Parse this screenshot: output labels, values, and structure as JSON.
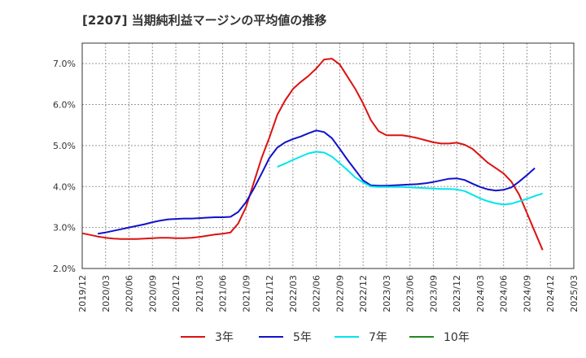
{
  "title": "[2207]  当期純利益マージンの平均値の推移",
  "chart_data": {
    "type": "line",
    "title": "[2207]  当期純利益マージンの平均値の推移",
    "xlabel": "",
    "ylabel": "",
    "ylim": [
      2.0,
      7.5
    ],
    "xlim": [
      "2019/12",
      "2025/03"
    ],
    "grid": true,
    "legend_position": "bottom",
    "y_ticks": [
      "2.0%",
      "3.0%",
      "4.0%",
      "5.0%",
      "6.0%",
      "7.0%"
    ],
    "x_ticks": [
      "2019/12",
      "2020/03",
      "2020/06",
      "2020/09",
      "2020/12",
      "2021/03",
      "2021/06",
      "2021/09",
      "2021/12",
      "2022/03",
      "2022/06",
      "2022/09",
      "2022/12",
      "2023/03",
      "2023/06",
      "2023/09",
      "2023/12",
      "2024/03",
      "2024/06",
      "2024/09",
      "2024/12",
      "2025/03"
    ],
    "series": [
      {
        "name": "3年",
        "color": "#dd1111",
        "points": [
          [
            "2019/12",
            2.86
          ],
          [
            "2020/01",
            2.82
          ],
          [
            "2020/02",
            2.78
          ],
          [
            "2020/03",
            2.75
          ],
          [
            "2020/04",
            2.73
          ],
          [
            "2020/05",
            2.72
          ],
          [
            "2020/06",
            2.72
          ],
          [
            "2020/07",
            2.72
          ],
          [
            "2020/08",
            2.73
          ],
          [
            "2020/09",
            2.74
          ],
          [
            "2020/10",
            2.75
          ],
          [
            "2020/11",
            2.75
          ],
          [
            "2020/12",
            2.74
          ],
          [
            "2021/01",
            2.74
          ],
          [
            "2021/02",
            2.75
          ],
          [
            "2021/03",
            2.77
          ],
          [
            "2021/04",
            2.8
          ],
          [
            "2021/05",
            2.83
          ],
          [
            "2021/06",
            2.85
          ],
          [
            "2021/07",
            2.88
          ],
          [
            "2021/08",
            3.1
          ],
          [
            "2021/09",
            3.5
          ],
          [
            "2021/10",
            4.1
          ],
          [
            "2021/11",
            4.7
          ],
          [
            "2021/12",
            5.2
          ],
          [
            "2022/01",
            5.75
          ],
          [
            "2022/02",
            6.1
          ],
          [
            "2022/03",
            6.38
          ],
          [
            "2022/04",
            6.55
          ],
          [
            "2022/05",
            6.7
          ],
          [
            "2022/06",
            6.88
          ],
          [
            "2022/07",
            7.1
          ],
          [
            "2022/08",
            7.12
          ],
          [
            "2022/09",
            6.98
          ],
          [
            "2022/10",
            6.68
          ],
          [
            "2022/11",
            6.38
          ],
          [
            "2022/12",
            6.03
          ],
          [
            "2023/01",
            5.62
          ],
          [
            "2023/02",
            5.35
          ],
          [
            "2023/03",
            5.25
          ],
          [
            "2023/04",
            5.25
          ],
          [
            "2023/05",
            5.25
          ],
          [
            "2023/06",
            5.22
          ],
          [
            "2023/07",
            5.18
          ],
          [
            "2023/08",
            5.13
          ],
          [
            "2023/09",
            5.08
          ],
          [
            "2023/10",
            5.05
          ],
          [
            "2023/11",
            5.05
          ],
          [
            "2023/12",
            5.07
          ],
          [
            "2024/01",
            5.02
          ],
          [
            "2024/02",
            4.92
          ],
          [
            "2024/03",
            4.75
          ],
          [
            "2024/04",
            4.58
          ],
          [
            "2024/05",
            4.45
          ],
          [
            "2024/06",
            4.32
          ],
          [
            "2024/07",
            4.12
          ],
          [
            "2024/08",
            3.8
          ],
          [
            "2024/09",
            3.35
          ],
          [
            "2024/10",
            2.9
          ],
          [
            "2024/11",
            2.45
          ]
        ]
      },
      {
        "name": "5年",
        "color": "#1111cc",
        "points": [
          [
            "2020/02",
            2.85
          ],
          [
            "2020/03",
            2.88
          ],
          [
            "2020/04",
            2.92
          ],
          [
            "2020/05",
            2.96
          ],
          [
            "2020/06",
            3.0
          ],
          [
            "2020/07",
            3.04
          ],
          [
            "2020/08",
            3.08
          ],
          [
            "2020/09",
            3.13
          ],
          [
            "2020/10",
            3.17
          ],
          [
            "2020/11",
            3.2
          ],
          [
            "2020/12",
            3.21
          ],
          [
            "2021/01",
            3.22
          ],
          [
            "2021/02",
            3.22
          ],
          [
            "2021/03",
            3.23
          ],
          [
            "2021/04",
            3.24
          ],
          [
            "2021/05",
            3.25
          ],
          [
            "2021/06",
            3.25
          ],
          [
            "2021/07",
            3.26
          ],
          [
            "2021/08",
            3.38
          ],
          [
            "2021/09",
            3.62
          ],
          [
            "2021/10",
            3.95
          ],
          [
            "2021/11",
            4.32
          ],
          [
            "2021/12",
            4.7
          ],
          [
            "2022/01",
            4.95
          ],
          [
            "2022/02",
            5.08
          ],
          [
            "2022/03",
            5.16
          ],
          [
            "2022/04",
            5.22
          ],
          [
            "2022/05",
            5.3
          ],
          [
            "2022/06",
            5.37
          ],
          [
            "2022/07",
            5.33
          ],
          [
            "2022/08",
            5.18
          ],
          [
            "2022/09",
            4.92
          ],
          [
            "2022/10",
            4.65
          ],
          [
            "2022/11",
            4.4
          ],
          [
            "2022/12",
            4.15
          ],
          [
            "2023/01",
            4.03
          ],
          [
            "2023/02",
            4.02
          ],
          [
            "2023/03",
            4.02
          ],
          [
            "2023/04",
            4.03
          ],
          [
            "2023/05",
            4.04
          ],
          [
            "2023/06",
            4.05
          ],
          [
            "2023/07",
            4.06
          ],
          [
            "2023/08",
            4.08
          ],
          [
            "2023/09",
            4.11
          ],
          [
            "2023/10",
            4.15
          ],
          [
            "2023/11",
            4.19
          ],
          [
            "2023/12",
            4.2
          ],
          [
            "2024/01",
            4.16
          ],
          [
            "2024/02",
            4.07
          ],
          [
            "2024/03",
            3.99
          ],
          [
            "2024/04",
            3.93
          ],
          [
            "2024/05",
            3.9
          ],
          [
            "2024/06",
            3.92
          ],
          [
            "2024/07",
            3.98
          ],
          [
            "2024/08",
            4.12
          ],
          [
            "2024/09",
            4.28
          ],
          [
            "2024/10",
            4.45
          ]
        ]
      },
      {
        "name": "7年",
        "color": "#00e5ee",
        "points": [
          [
            "2022/01",
            4.48
          ],
          [
            "2022/02",
            4.56
          ],
          [
            "2022/03",
            4.65
          ],
          [
            "2022/04",
            4.73
          ],
          [
            "2022/05",
            4.81
          ],
          [
            "2022/06",
            4.85
          ],
          [
            "2022/07",
            4.83
          ],
          [
            "2022/08",
            4.73
          ],
          [
            "2022/09",
            4.57
          ],
          [
            "2022/10",
            4.4
          ],
          [
            "2022/11",
            4.22
          ],
          [
            "2022/12",
            4.1
          ],
          [
            "2023/01",
            4.0
          ],
          [
            "2023/02",
            3.99
          ],
          [
            "2023/03",
            3.99
          ],
          [
            "2023/04",
            3.99
          ],
          [
            "2023/05",
            3.99
          ],
          [
            "2023/06",
            3.98
          ],
          [
            "2023/07",
            3.97
          ],
          [
            "2023/08",
            3.96
          ],
          [
            "2023/09",
            3.95
          ],
          [
            "2023/10",
            3.94
          ],
          [
            "2023/11",
            3.94
          ],
          [
            "2023/12",
            3.93
          ],
          [
            "2024/01",
            3.89
          ],
          [
            "2024/02",
            3.8
          ],
          [
            "2024/03",
            3.71
          ],
          [
            "2024/04",
            3.64
          ],
          [
            "2024/05",
            3.59
          ],
          [
            "2024/06",
            3.56
          ],
          [
            "2024/07",
            3.58
          ],
          [
            "2024/08",
            3.64
          ],
          [
            "2024/09",
            3.7
          ],
          [
            "2024/10",
            3.77
          ],
          [
            "2024/11",
            3.83
          ]
        ]
      },
      {
        "name": "10年",
        "color": "#228822",
        "points": []
      }
    ]
  }
}
